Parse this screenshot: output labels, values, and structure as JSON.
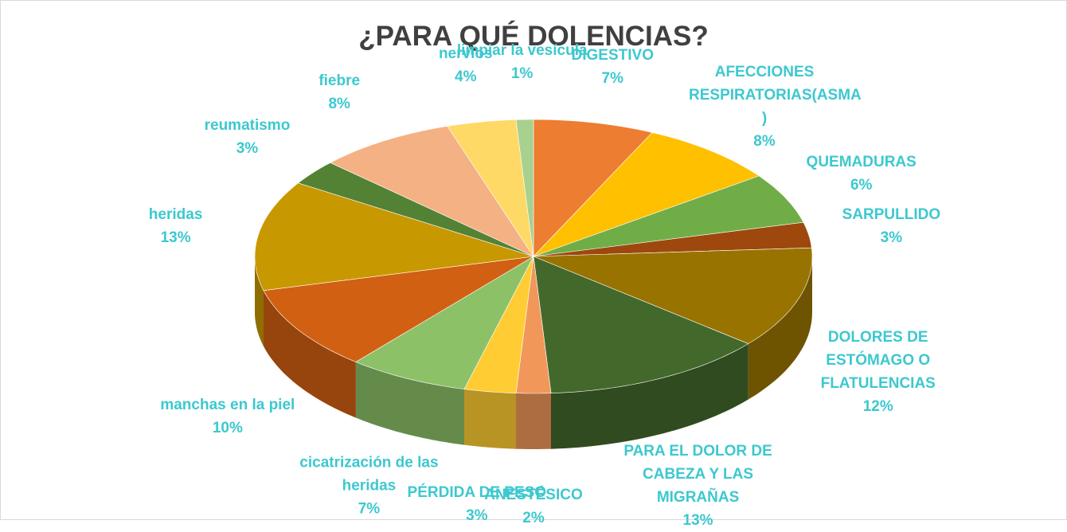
{
  "chart_data": {
    "type": "pie3d",
    "title": "¿PARA QUÉ DOLENCIAS?",
    "categories": [
      "DIGESTIVO",
      "AFECCIONES RESPIRATORIAS(ASMA )",
      "QUEMADURAS",
      "SARPULLIDO",
      "DOLORES DE ESTÓMAGO O FLATULENCIAS",
      "PARA EL DOLOR DE CABEZA Y LAS MIGRAÑAS",
      "ANESTÉSICO",
      "PÉRDIDA DE PESO",
      "cicatrización de las heridas",
      "manchas en la piel",
      "heridas",
      "reumatismo",
      "fiebre",
      "nervios",
      "limpiar la vesícula"
    ],
    "values": [
      7,
      8,
      6,
      3,
      12,
      13,
      2,
      3,
      7,
      10,
      13,
      3,
      8,
      4,
      1
    ],
    "value_labels": [
      "7%",
      "8%",
      "6%",
      "3%",
      "12%",
      "13%",
      "2%",
      "3%",
      "7%",
      "10%",
      "13%",
      "3%",
      "8%",
      "4%",
      "1%"
    ],
    "colors": [
      "#ED7D31",
      "#FFC000",
      "#70AD47",
      "#9E480E",
      "#997300",
      "#43682B",
      "#F1975A",
      "#FFCD33",
      "#8CC168",
      "#D26012",
      "#C89800",
      "#548235",
      "#F4B183",
      "#FFD966",
      "#A9D18E"
    ]
  }
}
